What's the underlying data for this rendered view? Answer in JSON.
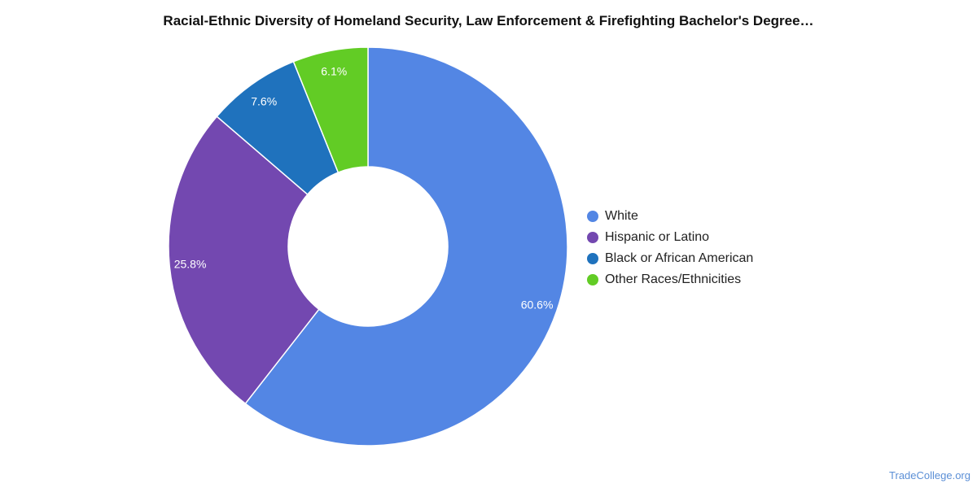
{
  "chart_data": {
    "type": "pie",
    "title": "Racial-Ethnic Diversity of Homeland Security, Law Enforcement & Firefighting Bachelor's Degree…",
    "donut": true,
    "categories": [
      "White",
      "Hispanic or Latino",
      "Black or African American",
      "Other Races/Ethnicities"
    ],
    "values": [
      60.6,
      25.8,
      7.6,
      6.1
    ],
    "value_labels": [
      "60.6%",
      "25.8%",
      "7.6%",
      "6.1%"
    ],
    "colors": [
      "#5386e4",
      "#7348b0",
      "#1f72bd",
      "#62cc25"
    ],
    "legend_position": "right"
  },
  "source": "TradeCollege.org"
}
